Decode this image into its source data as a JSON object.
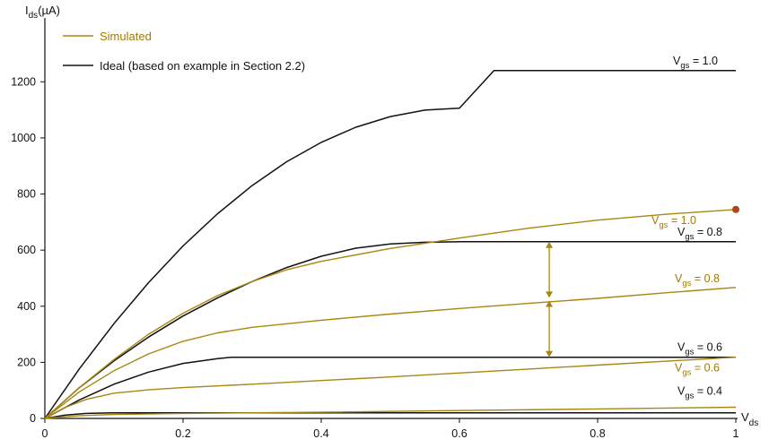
{
  "chart_data": {
    "type": "line",
    "xlabel": "V",
    "xlabel_sub": "ds",
    "ylabel": "I",
    "ylabel_sub": "ds",
    "ylabel_unit": "(µA)",
    "xlim": [
      0,
      1
    ],
    "ylim": [
      0,
      1300
    ],
    "x_ticks": [
      0,
      0.2,
      0.4,
      0.6,
      0.8,
      1
    ],
    "x_tick_labels": [
      "0",
      "0.2",
      "0.4",
      "0.6",
      "0.8",
      "1"
    ],
    "y_ticks": [
      0,
      200,
      400,
      600,
      800,
      1000,
      1200
    ],
    "y_tick_labels": [
      "0",
      "200",
      "400",
      "600",
      "800",
      "1000",
      "1200"
    ],
    "grid": false,
    "legend_position": "top-left",
    "legend": [
      {
        "label": "Simulated",
        "color": "#a8860f"
      },
      {
        "label": "Ideal (based on example in Section 2.2)",
        "color": "#111111"
      }
    ],
    "colors": {
      "simulated": "#a8860f",
      "ideal": "#111111",
      "label_simulated": "#a07a00"
    },
    "series": [
      {
        "group": "Ideal",
        "label_prefix": "V",
        "label_sub": "gs",
        "label_value": " = 1.0",
        "vgs": 1.0,
        "x": [
          0,
          0.05,
          0.1,
          0.15,
          0.2,
          0.25,
          0.3,
          0.35,
          0.4,
          0.45,
          0.5,
          0.55,
          0.6,
          0.65,
          0.7,
          0.8,
          0.9,
          1.0
        ],
        "y": [
          0,
          177,
          338,
          484,
          615,
          730,
          830,
          915,
          984,
          1038,
          1076,
          1099,
          1106,
          1240,
          1240,
          1240,
          1240,
          1240
        ]
      },
      {
        "group": "Ideal",
        "label_prefix": "V",
        "label_sub": "gs",
        "label_value": " = 0.8",
        "vgs": 0.8,
        "x": [
          0,
          0.05,
          0.1,
          0.15,
          0.2,
          0.25,
          0.3,
          0.35,
          0.4,
          0.45,
          0.5,
          0.55,
          0.6,
          0.7,
          0.8,
          0.9,
          1.0
        ],
        "y": [
          0,
          110,
          205,
          290,
          365,
          430,
          488,
          538,
          578,
          607,
          622,
          628,
          630,
          630,
          630,
          630,
          630
        ]
      },
      {
        "group": "Ideal",
        "label_prefix": "V",
        "label_sub": "gs",
        "label_value": " = 0.6",
        "vgs": 0.6,
        "x": [
          0,
          0.05,
          0.1,
          0.15,
          0.2,
          0.25,
          0.27,
          0.3,
          0.4,
          0.5,
          0.6,
          0.7,
          0.8,
          0.9,
          1.0
        ],
        "y": [
          0,
          66,
          122,
          165,
          196,
          213,
          218,
          218,
          218,
          218,
          218,
          218,
          218,
          218,
          218
        ]
      },
      {
        "group": "Ideal",
        "label_prefix": "V",
        "label_sub": "gs",
        "label_value": " = 0.4",
        "vgs": 0.4,
        "x": [
          0,
          0.03,
          0.06,
          0.1,
          0.2,
          0.4,
          0.6,
          0.8,
          1.0
        ],
        "y": [
          0,
          12,
          18,
          20,
          20,
          20,
          20,
          20,
          20
        ]
      },
      {
        "group": "Simulated",
        "label_prefix": "V",
        "label_sub": "gs",
        "label_value": " = 1.0",
        "vgs": 1.0,
        "x": [
          0,
          0.05,
          0.1,
          0.15,
          0.2,
          0.25,
          0.3,
          0.35,
          0.4,
          0.5,
          0.6,
          0.7,
          0.8,
          0.9,
          1.0
        ],
        "y": [
          0,
          110,
          210,
          300,
          375,
          438,
          488,
          530,
          560,
          606,
          643,
          678,
          707,
          728,
          745
        ]
      },
      {
        "group": "Simulated",
        "label_prefix": "V",
        "label_sub": "gs",
        "label_value": " = 0.8",
        "vgs": 0.8,
        "x": [
          0,
          0.05,
          0.1,
          0.15,
          0.2,
          0.25,
          0.3,
          0.4,
          0.5,
          0.6,
          0.7,
          0.8,
          0.9,
          1.0
        ],
        "y": [
          0,
          95,
          170,
          230,
          275,
          305,
          325,
          350,
          372,
          392,
          410,
          428,
          448,
          467
        ]
      },
      {
        "group": "Simulated",
        "label_prefix": "V",
        "label_sub": "gs",
        "label_value": " = 0.6",
        "vgs": 0.6,
        "x": [
          0,
          0.03,
          0.06,
          0.1,
          0.15,
          0.2,
          0.3,
          0.4,
          0.5,
          0.6,
          0.7,
          0.8,
          0.9,
          1.0
        ],
        "y": [
          0,
          40,
          68,
          90,
          102,
          110,
          122,
          135,
          148,
          162,
          176,
          190,
          204,
          218
        ]
      },
      {
        "group": "Simulated",
        "label_prefix": "",
        "label_sub": "",
        "label_value": "",
        "vgs": 0.4,
        "x": [
          0,
          0.05,
          0.1,
          0.2,
          0.4,
          0.6,
          0.8,
          1.0
        ],
        "y": [
          0,
          10,
          14,
          18,
          22,
          28,
          34,
          40
        ]
      }
    ],
    "annotations": [
      {
        "type": "double-arrow",
        "x": 0.73,
        "y_from": 218,
        "y_to": 420,
        "color": "#a8860f"
      },
      {
        "type": "double-arrow",
        "x": 0.73,
        "y_from": 430,
        "y_to": 630,
        "color": "#a8860f"
      }
    ],
    "marker": {
      "x": 1.0,
      "y": 745,
      "color": "#c0392b"
    }
  }
}
